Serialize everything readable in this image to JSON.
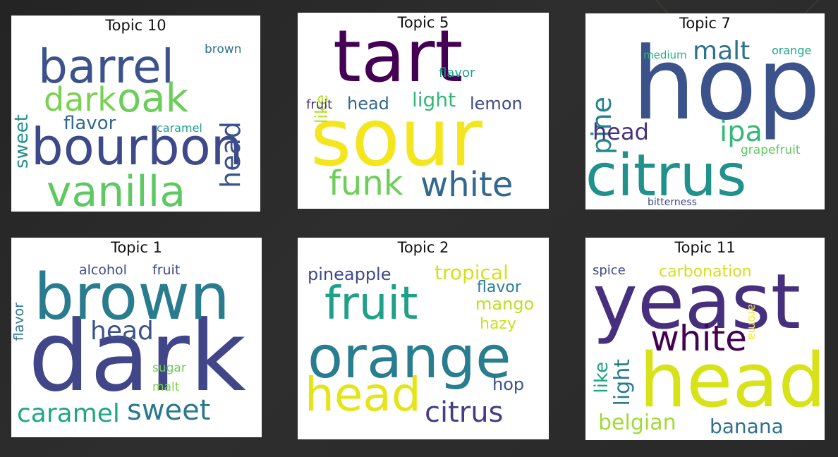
{
  "chart_data": [
    {
      "type": "wordcloud",
      "title": "Topic 10",
      "words": [
        {
          "text": "bourbon",
          "weight": 1.0,
          "color": "#3e4989"
        },
        {
          "text": "barrel",
          "weight": 0.92,
          "color": "#3b528b"
        },
        {
          "text": "vanilla",
          "weight": 0.78,
          "color": "#5ec962"
        },
        {
          "text": "oak",
          "weight": 0.62,
          "color": "#6ccd5a"
        },
        {
          "text": "dark",
          "weight": 0.6,
          "color": "#7ad151"
        },
        {
          "text": "head",
          "weight": 0.5,
          "color": "#3b528b"
        },
        {
          "text": "flavor",
          "weight": 0.32,
          "color": "#31688e"
        },
        {
          "text": "sweet",
          "weight": 0.3,
          "color": "#21918c"
        },
        {
          "text": "brown",
          "weight": 0.22,
          "color": "#2c728e"
        },
        {
          "text": "caramel",
          "weight": 0.2,
          "color": "#1f9e89"
        }
      ]
    },
    {
      "type": "wordcloud",
      "title": "Topic 5",
      "words": [
        {
          "text": "sour",
          "weight": 1.0,
          "color": "#f4e61e"
        },
        {
          "text": "tart",
          "weight": 0.95,
          "color": "#440154"
        },
        {
          "text": "white",
          "weight": 0.45,
          "color": "#31688e"
        },
        {
          "text": "funk",
          "weight": 0.45,
          "color": "#6ece58"
        },
        {
          "text": "light",
          "weight": 0.3,
          "color": "#35b779"
        },
        {
          "text": "lemon",
          "weight": 0.28,
          "color": "#3e4a89"
        },
        {
          "text": "head",
          "weight": 0.26,
          "color": "#31688e"
        },
        {
          "text": "like",
          "weight": 0.24,
          "color": "#b5de2b"
        },
        {
          "text": "flavor",
          "weight": 0.18,
          "color": "#1fa188"
        },
        {
          "text": "fruit",
          "weight": 0.17,
          "color": "#46327e"
        }
      ]
    },
    {
      "type": "wordcloud",
      "title": "Topic 7",
      "words": [
        {
          "text": "hop",
          "weight": 1.0,
          "color": "#3b528b"
        },
        {
          "text": "citrus",
          "weight": 0.78,
          "color": "#21918c"
        },
        {
          "text": "malt",
          "weight": 0.35,
          "color": "#2c728e"
        },
        {
          "text": "ipa",
          "weight": 0.35,
          "color": "#35b779"
        },
        {
          "text": "pine",
          "weight": 0.33,
          "color": "#25858e"
        },
        {
          "text": "head",
          "weight": 0.3,
          "color": "#46327e"
        },
        {
          "text": "medium",
          "weight": 0.15,
          "color": "#2db27d"
        },
        {
          "text": "orange",
          "weight": 0.15,
          "color": "#20a386"
        },
        {
          "text": "grapefruit",
          "weight": 0.15,
          "color": "#5ec962"
        },
        {
          "text": "bitterness",
          "weight": 0.14,
          "color": "#3e4989"
        }
      ]
    },
    {
      "type": "wordcloud",
      "title": "Topic 1",
      "words": [
        {
          "text": "dark",
          "weight": 1.0,
          "color": "#404688"
        },
        {
          "text": "brown",
          "weight": 0.72,
          "color": "#287c8e"
        },
        {
          "text": "sweet",
          "weight": 0.43,
          "color": "#2a788e"
        },
        {
          "text": "caramel",
          "weight": 0.38,
          "color": "#21a585"
        },
        {
          "text": "head",
          "weight": 0.38,
          "color": "#3b528b"
        },
        {
          "text": "flavor",
          "weight": 0.18,
          "color": "#2c728e"
        },
        {
          "text": "alcohol",
          "weight": 0.18,
          "color": "#3e4c8a"
        },
        {
          "text": "fruit",
          "weight": 0.18,
          "color": "#3f4889"
        },
        {
          "text": "sugar",
          "weight": 0.17,
          "color": "#6ece58"
        },
        {
          "text": "malt",
          "weight": 0.17,
          "color": "#7fd34e"
        }
      ]
    },
    {
      "type": "wordcloud",
      "title": "Topic 2",
      "words": [
        {
          "text": "orange",
          "weight": 1.0,
          "color": "#287d8e"
        },
        {
          "text": "fruit",
          "weight": 0.75,
          "color": "#1fa088"
        },
        {
          "text": "head",
          "weight": 0.75,
          "color": "#e5e419"
        },
        {
          "text": "citrus",
          "weight": 0.45,
          "color": "#433e85"
        },
        {
          "text": "tropical",
          "weight": 0.3,
          "color": "#d2e21b"
        },
        {
          "text": "pineapple",
          "weight": 0.28,
          "color": "#3e4989"
        },
        {
          "text": "mango",
          "weight": 0.25,
          "color": "#bddf26"
        },
        {
          "text": "flavor",
          "weight": 0.23,
          "color": "#277f8e"
        },
        {
          "text": "hazy",
          "weight": 0.22,
          "color": "#cae11f"
        },
        {
          "text": "hop",
          "weight": 0.24,
          "color": "#3b528b"
        }
      ]
    },
    {
      "type": "wordcloud",
      "title": "Topic 11",
      "words": [
        {
          "text": "yeast",
          "weight": 1.0,
          "color": "#46307e"
        },
        {
          "text": "head",
          "weight": 0.95,
          "color": "#d8e219"
        },
        {
          "text": "white",
          "weight": 0.5,
          "color": "#440154"
        },
        {
          "text": "light",
          "weight": 0.32,
          "color": "#287c8e"
        },
        {
          "text": "like",
          "weight": 0.28,
          "color": "#1fa088"
        },
        {
          "text": "belgian",
          "weight": 0.3,
          "color": "#a0da39"
        },
        {
          "text": "banana",
          "weight": 0.28,
          "color": "#2c728e"
        },
        {
          "text": "carbonation",
          "weight": 0.22,
          "color": "#d2e21b"
        },
        {
          "text": "spice",
          "weight": 0.2,
          "color": "#3e4989"
        },
        {
          "text": "aroma",
          "weight": 0.16,
          "color": "#fde725"
        }
      ]
    }
  ]
}
